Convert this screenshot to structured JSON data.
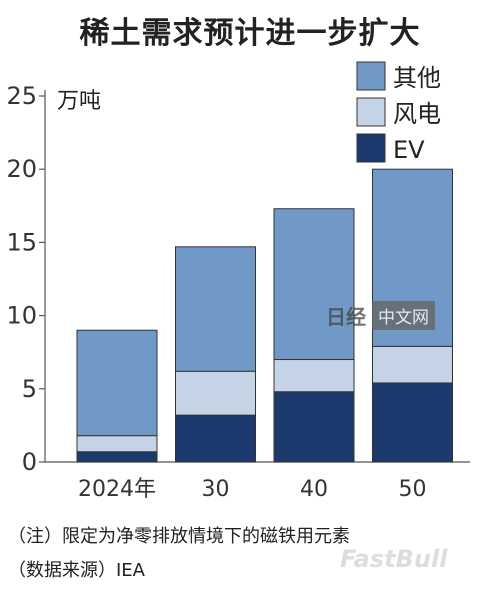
{
  "title": "稀土需求预计进一步扩大",
  "notes": {
    "note1": "（注）限定为净零排放情境下的磁铁用元素",
    "note2": "（数据来源）IEA"
  },
  "watermark": {
    "logo": "日经",
    "text": "中文网",
    "text2": "FastBull"
  },
  "chart_data": {
    "type": "bar",
    "stacked": true,
    "categories": [
      "2024年",
      "30",
      "40",
      "50"
    ],
    "ylabel": "万吨",
    "ylim": [
      0,
      25
    ],
    "yticks": [
      0,
      5,
      10,
      15,
      20,
      25
    ],
    "grid": false,
    "legend_position": "top-right",
    "series": [
      {
        "name": "EV",
        "values": [
          0.7,
          3.2,
          4.8,
          5.4
        ],
        "color": "#1c3a6e"
      },
      {
        "name": "风电",
        "values": [
          1.1,
          3.0,
          2.2,
          2.5
        ],
        "color": "#c4d3e6"
      },
      {
        "name": "其他",
        "values": [
          7.2,
          8.5,
          10.3,
          12.1
        ],
        "color": "#7199c7"
      }
    ],
    "legend_order": [
      "其他",
      "风电",
      "EV"
    ]
  }
}
